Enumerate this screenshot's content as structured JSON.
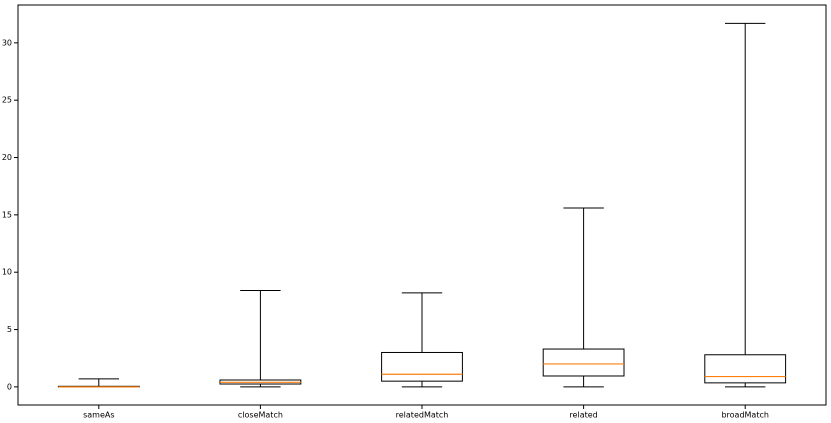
{
  "chart_data": {
    "type": "box",
    "categories": [
      "sameAs",
      "closeMatch",
      "relatedMatch",
      "related",
      "broadMatch"
    ],
    "boxes": [
      {
        "whislo": 0,
        "q1": 0,
        "med": 0,
        "q3": 0.05,
        "whishi": 0.7
      },
      {
        "whislo": 0,
        "q1": 0.25,
        "med": 0.4,
        "q3": 0.6,
        "whishi": 8.4
      },
      {
        "whislo": 0,
        "q1": 0.5,
        "med": 1.1,
        "q3": 3.0,
        "whishi": 8.2
      },
      {
        "whislo": 0,
        "q1": 0.95,
        "med": 2.0,
        "q3": 3.3,
        "whishi": 15.6
      },
      {
        "whislo": 0,
        "q1": 0.35,
        "med": 0.9,
        "q3": 2.8,
        "whishi": 31.7
      }
    ],
    "box_color": "#000000",
    "median_color": "#ff7f0e",
    "ylim": [
      -1.58,
      33.3
    ],
    "yticks": [
      0,
      5,
      10,
      15,
      20,
      25,
      30
    ]
  }
}
